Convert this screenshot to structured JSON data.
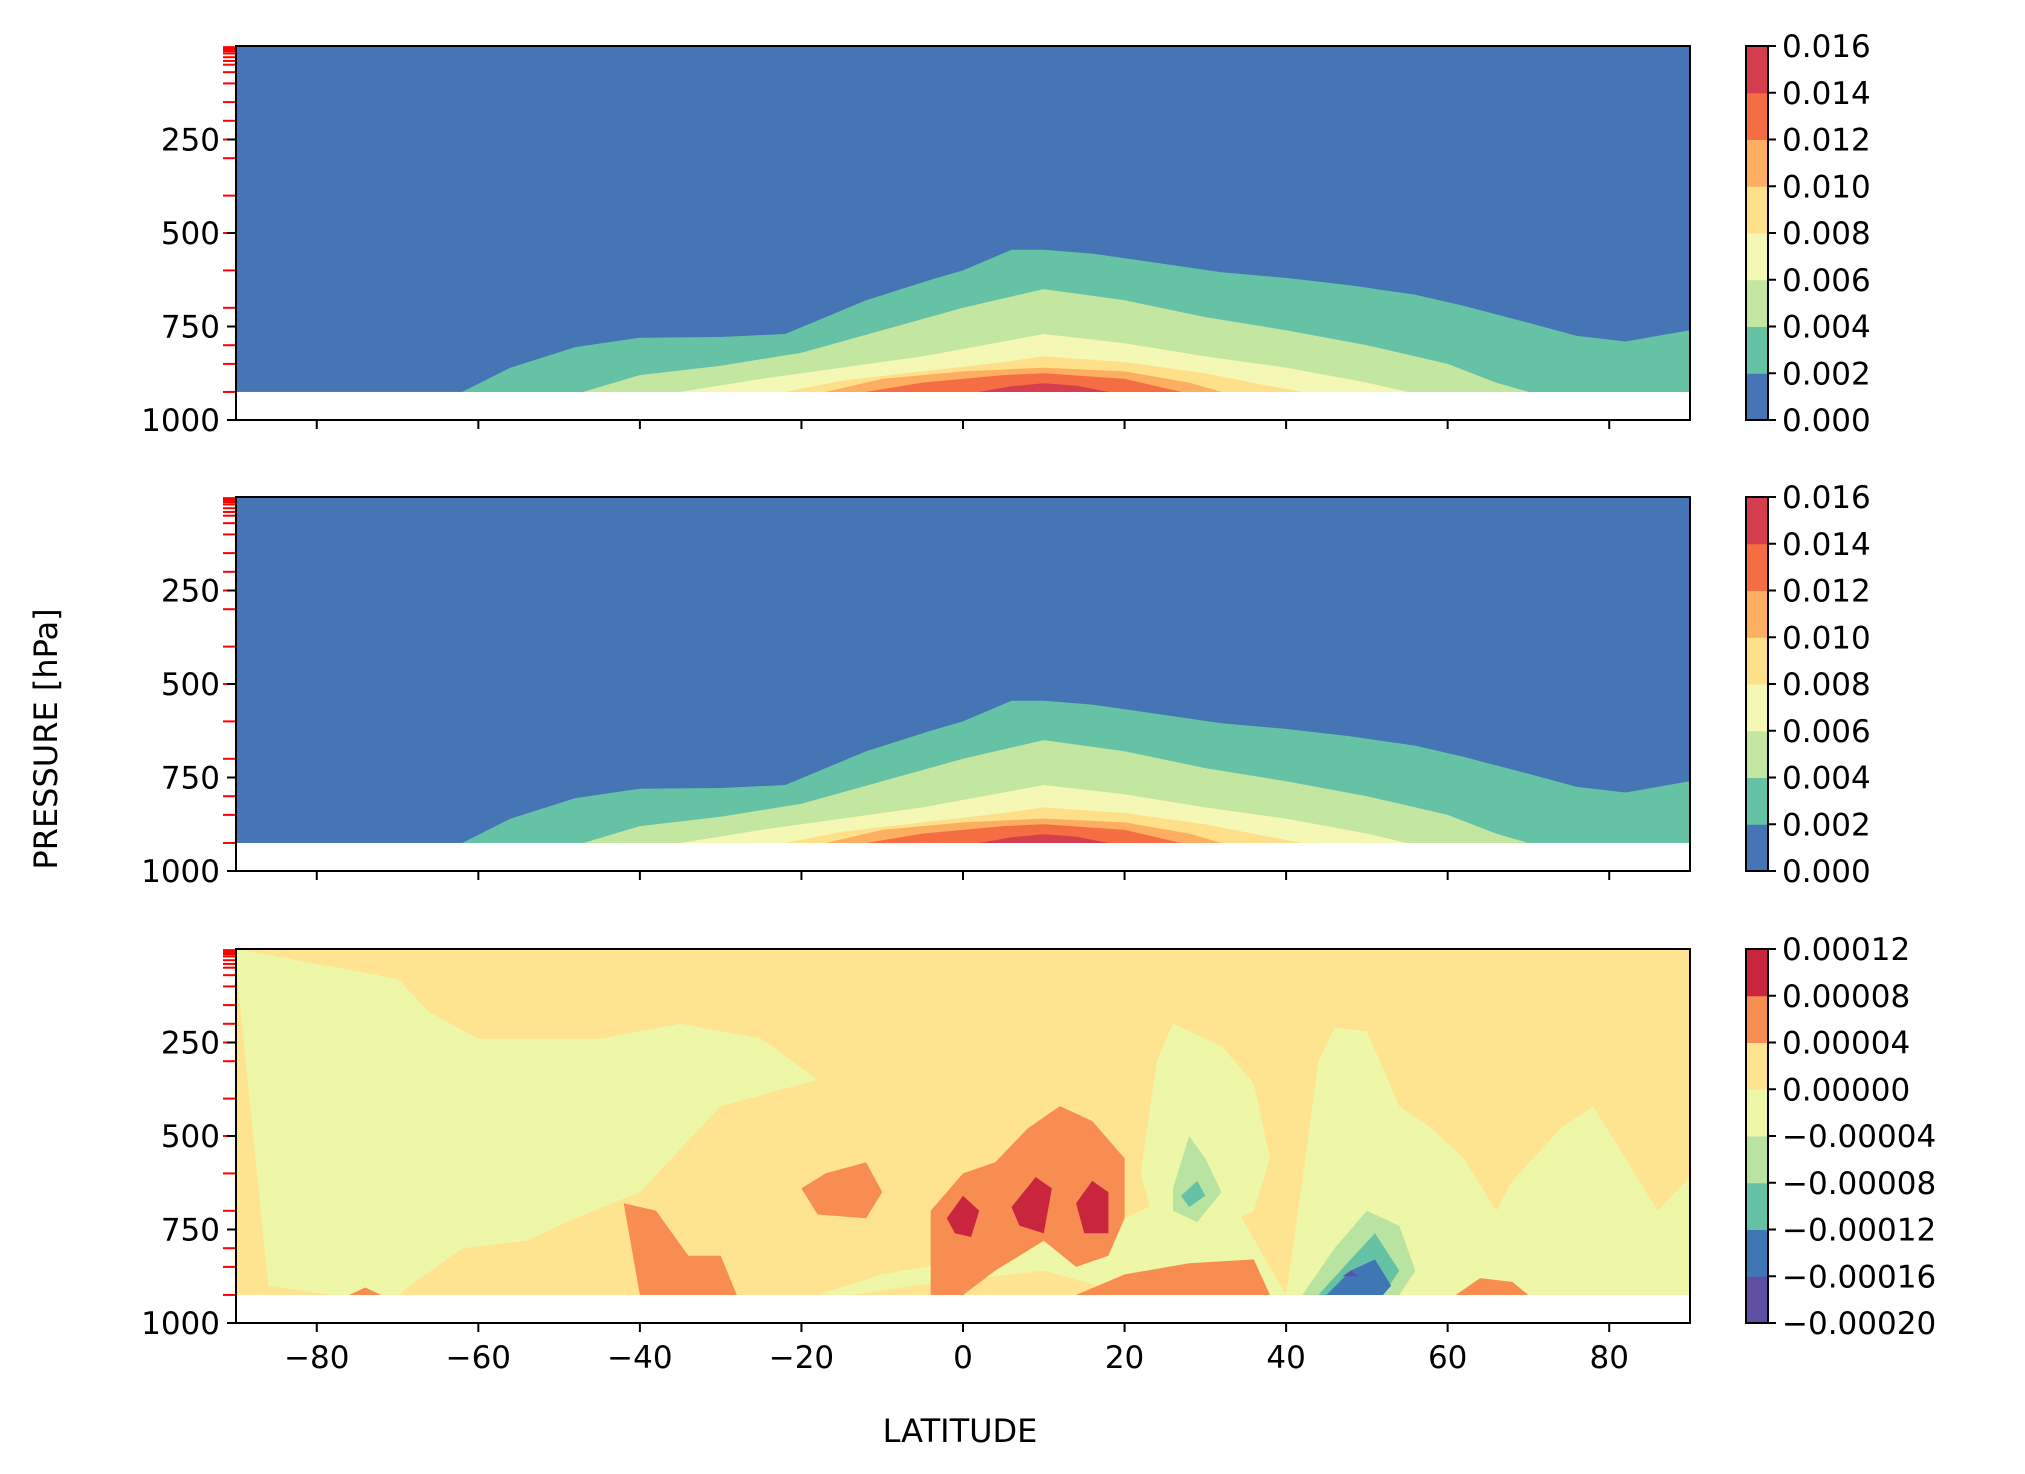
{
  "figure": {
    "xlabel": "LATITUDE",
    "ylabel": "PRESSURE [hPa]"
  },
  "chart_data": [
    {
      "type": "contourf",
      "panel": "top",
      "xlim": [
        -90,
        90
      ],
      "ylim": [
        1000,
        0
      ],
      "x_ticks": [
        -80,
        -60,
        -40,
        -20,
        0,
        20,
        40,
        60,
        80
      ],
      "y_ticks": [
        250,
        500,
        750,
        1000
      ],
      "y_tick_labels": [
        "250",
        "500",
        "750",
        "1000"
      ],
      "x_tick_labels_visible": false,
      "surface_level_hpa": 925,
      "colormap": "Spectral_r",
      "levels": [
        0.0,
        0.002,
        0.004,
        0.006,
        0.008,
        0.01,
        0.012,
        0.014,
        0.016
      ],
      "colorbar_ticks": [
        "0.000",
        "0.002",
        "0.004",
        "0.006",
        "0.008",
        "0.010",
        "0.012",
        "0.014",
        "0.016"
      ],
      "colors": [
        "#4575b4",
        "#66c2a5",
        "#c3e6a0",
        "#f5f7b4",
        "#fee08b",
        "#fdae61",
        "#f46d43",
        "#d53e4f",
        "#9e0142"
      ],
      "contours": [
        {
          "level": 0.002,
          "lat": [
            -62,
            -56,
            -48,
            -40,
            -30,
            -22,
            -12,
            -4,
            0,
            6,
            10,
            16,
            24,
            32,
            40,
            48,
            56,
            62,
            70,
            76,
            82,
            90
          ],
          "p": [
            925,
            860,
            805,
            780,
            778,
            770,
            680,
            625,
            600,
            545,
            545,
            555,
            580,
            605,
            620,
            640,
            665,
            695,
            740,
            775,
            790,
            760
          ]
        },
        {
          "level": 0.004,
          "lat": [
            -47,
            -40,
            -30,
            -20,
            -10,
            0,
            10,
            20,
            30,
            40,
            50,
            60,
            66,
            70
          ],
          "p": [
            925,
            880,
            855,
            820,
            760,
            700,
            650,
            680,
            725,
            760,
            800,
            850,
            900,
            925
          ]
        },
        {
          "level": 0.006,
          "lat": [
            -35,
            -25,
            -15,
            -5,
            5,
            10,
            20,
            30,
            40,
            50,
            55
          ],
          "p": [
            925,
            890,
            860,
            830,
            790,
            770,
            795,
            830,
            860,
            900,
            925
          ]
        },
        {
          "level": 0.008,
          "lat": [
            -22,
            -15,
            -5,
            5,
            10,
            20,
            30,
            37,
            42
          ],
          "p": [
            925,
            895,
            870,
            845,
            830,
            845,
            875,
            905,
            925
          ]
        },
        {
          "level": 0.01,
          "lat": [
            -17,
            -10,
            0,
            10,
            20,
            28,
            32
          ],
          "p": [
            925,
            890,
            870,
            860,
            870,
            900,
            925
          ]
        },
        {
          "level": 0.012,
          "lat": [
            -12,
            -5,
            5,
            10,
            20,
            27
          ],
          "p": [
            925,
            900,
            880,
            875,
            890,
            925
          ]
        },
        {
          "level": 0.014,
          "lat": [
            2,
            6,
            10,
            14,
            18
          ],
          "p": [
            925,
            910,
            902,
            908,
            925
          ]
        }
      ]
    },
    {
      "type": "contourf",
      "panel": "middle",
      "xlim": [
        -90,
        90
      ],
      "ylim": [
        1000,
        0
      ],
      "x_ticks": [
        -80,
        -60,
        -40,
        -20,
        0,
        20,
        40,
        60,
        80
      ],
      "y_ticks": [
        250,
        500,
        750,
        1000
      ],
      "y_tick_labels": [
        "250",
        "500",
        "750",
        "1000"
      ],
      "x_tick_labels_visible": false,
      "surface_level_hpa": 925,
      "colormap": "Spectral_r",
      "levels": [
        0.0,
        0.002,
        0.004,
        0.006,
        0.008,
        0.01,
        0.012,
        0.014,
        0.016
      ],
      "colorbar_ticks": [
        "0.000",
        "0.002",
        "0.004",
        "0.006",
        "0.008",
        "0.010",
        "0.012",
        "0.014",
        "0.016"
      ],
      "colors": [
        "#4575b4",
        "#66c2a5",
        "#c3e6a0",
        "#f5f7b4",
        "#fee08b",
        "#fdae61",
        "#f46d43",
        "#d53e4f",
        "#9e0142"
      ],
      "contours": [
        {
          "level": 0.002,
          "lat": [
            -62,
            -56,
            -48,
            -40,
            -30,
            -22,
            -12,
            -4,
            0,
            6,
            10,
            16,
            24,
            32,
            40,
            48,
            56,
            62,
            70,
            76,
            82,
            90
          ],
          "p": [
            925,
            860,
            805,
            780,
            778,
            770,
            680,
            625,
            600,
            545,
            545,
            555,
            580,
            605,
            620,
            640,
            665,
            695,
            740,
            775,
            790,
            760
          ]
        },
        {
          "level": 0.004,
          "lat": [
            -47,
            -40,
            -30,
            -20,
            -10,
            0,
            10,
            20,
            30,
            40,
            50,
            60,
            66,
            70
          ],
          "p": [
            925,
            880,
            855,
            820,
            760,
            700,
            650,
            680,
            725,
            760,
            800,
            850,
            900,
            925
          ]
        },
        {
          "level": 0.006,
          "lat": [
            -35,
            -25,
            -15,
            -5,
            5,
            10,
            20,
            30,
            40,
            50,
            55
          ],
          "p": [
            925,
            890,
            860,
            830,
            790,
            770,
            795,
            830,
            860,
            900,
            925
          ]
        },
        {
          "level": 0.008,
          "lat": [
            -22,
            -15,
            -5,
            5,
            10,
            20,
            30,
            37,
            42
          ],
          "p": [
            925,
            895,
            870,
            845,
            830,
            845,
            875,
            905,
            925
          ]
        },
        {
          "level": 0.01,
          "lat": [
            -17,
            -10,
            0,
            10,
            20,
            28,
            32
          ],
          "p": [
            925,
            890,
            870,
            860,
            870,
            900,
            925
          ]
        },
        {
          "level": 0.012,
          "lat": [
            -12,
            -5,
            5,
            10,
            20,
            27
          ],
          "p": [
            925,
            900,
            880,
            875,
            890,
            925
          ]
        },
        {
          "level": 0.014,
          "lat": [
            2,
            6,
            10,
            14,
            18
          ],
          "p": [
            925,
            910,
            902,
            908,
            925
          ]
        }
      ]
    },
    {
      "type": "contourf",
      "panel": "bottom",
      "xlim": [
        -90,
        90
      ],
      "ylim": [
        1000,
        0
      ],
      "x_ticks": [
        -80,
        -60,
        -40,
        -20,
        0,
        20,
        40,
        60,
        80
      ],
      "x_tick_labels": [
        "−80",
        "−60",
        "−40",
        "−20",
        "0",
        "20",
        "40",
        "60",
        "80"
      ],
      "y_ticks": [
        250,
        500,
        750,
        1000
      ],
      "y_tick_labels": [
        "250",
        "500",
        "750",
        "1000"
      ],
      "x_tick_labels_visible": true,
      "surface_level_hpa": 925,
      "colormap": "Spectral_r",
      "levels": [
        -0.0002,
        -0.00016,
        -0.00012,
        -8e-05,
        -4e-05,
        0.0,
        4e-05,
        8e-05,
        0.00012
      ],
      "colorbar_ticks": [
        "−0.00020",
        "−0.00016",
        "−0.00012",
        "−0.00008",
        "−0.00004",
        "0.00000",
        "0.00004",
        "0.00008",
        "0.00012"
      ],
      "colors": [
        "#5e4fa2",
        "#3e76b6",
        "#66c2a5",
        "#b8e3a0",
        "#eef7a8",
        "#fee391",
        "#f88d52",
        "#c9253f"
      ],
      "background_color": "#fee391",
      "regions": [
        {
          "fill": "#eef7a8",
          "lat": [
            -90,
            -80,
            -70,
            -66,
            -60,
            -45,
            -35,
            -25,
            -18,
            -30,
            -40,
            -48,
            -54,
            -62,
            -70,
            -78,
            -86,
            -90
          ],
          "p": [
            0,
            40,
            80,
            170,
            240,
            240,
            200,
            240,
            350,
            420,
            650,
            720,
            780,
            800,
            925,
            925,
            900,
            40
          ]
        },
        {
          "fill": "#eef7a8",
          "lat": [
            -18,
            -10,
            -2,
            4,
            12,
            20,
            24,
            28,
            34,
            40,
            36,
            28,
            20,
            10,
            2,
            -6,
            -14
          ],
          "p": [
            925,
            870,
            840,
            780,
            720,
            720,
            680,
            640,
            700,
            925,
            925,
            880,
            920,
            860,
            880,
            900,
            925
          ]
        },
        {
          "fill": "#eef7a8",
          "lat": [
            22,
            24,
            26,
            32,
            36,
            38,
            36,
            30,
            24
          ],
          "p": [
            600,
            300,
            200,
            260,
            360,
            560,
            700,
            760,
            760
          ]
        },
        {
          "fill": "#eef7a8",
          "lat": [
            40,
            42,
            44,
            46,
            50,
            54,
            58,
            62,
            66,
            68,
            74,
            78,
            82,
            86,
            90,
            90,
            60,
            50,
            44
          ],
          "p": [
            925,
            620,
            300,
            210,
            220,
            420,
            480,
            560,
            700,
            620,
            480,
            420,
            560,
            700,
            610,
            925,
            925,
            925,
            925
          ]
        },
        {
          "fill": "#f88d52",
          "lat": [
            -42,
            -38,
            -34,
            -30,
            -28,
            -32,
            -40
          ],
          "p": [
            680,
            700,
            820,
            820,
            925,
            925,
            925
          ]
        },
        {
          "fill": "#f88d52",
          "lat": [
            -76,
            -74,
            -72,
            -75
          ],
          "p": [
            925,
            905,
            925,
            925
          ]
        },
        {
          "fill": "#f88d52",
          "lat": [
            -20,
            -17,
            -12,
            -10,
            -12,
            -18
          ],
          "p": [
            640,
            600,
            570,
            650,
            720,
            710
          ]
        },
        {
          "fill": "#f88d52",
          "lat": [
            -4,
            0,
            4,
            8,
            12,
            16,
            20,
            20,
            18,
            14,
            10,
            4,
            0,
            -4
          ],
          "p": [
            700,
            600,
            570,
            480,
            420,
            460,
            560,
            720,
            820,
            850,
            780,
            860,
            925,
            925
          ]
        },
        {
          "fill": "#f88d52",
          "lat": [
            14,
            20,
            28,
            36,
            38,
            34,
            28,
            20,
            14
          ],
          "p": [
            925,
            870,
            840,
            830,
            925,
            925,
            925,
            925,
            925
          ]
        },
        {
          "fill": "#f88d52",
          "lat": [
            61,
            64,
            68,
            70,
            63
          ],
          "p": [
            925,
            880,
            890,
            925,
            925
          ]
        },
        {
          "fill": "#c9253f",
          "lat": [
            -2,
            0,
            2,
            1,
            -1
          ],
          "p": [
            720,
            660,
            700,
            770,
            760
          ]
        },
        {
          "fill": "#c9253f",
          "lat": [
            6,
            9,
            11,
            10,
            7
          ],
          "p": [
            690,
            610,
            640,
            760,
            740
          ]
        },
        {
          "fill": "#c9253f",
          "lat": [
            14,
            16,
            18,
            18,
            15
          ],
          "p": [
            680,
            620,
            650,
            760,
            760
          ]
        },
        {
          "fill": "#b8e3a0",
          "lat": [
            26,
            28,
            30,
            32,
            29,
            26
          ],
          "p": [
            640,
            500,
            560,
            650,
            730,
            700
          ]
        },
        {
          "fill": "#66c2a5",
          "lat": [
            27,
            29,
            30,
            28
          ],
          "p": [
            660,
            620,
            660,
            690
          ]
        },
        {
          "fill": "#b8e3a0",
          "lat": [
            42,
            46,
            50,
            54,
            56,
            54,
            44
          ],
          "p": [
            925,
            800,
            700,
            740,
            860,
            925,
            925
          ]
        },
        {
          "fill": "#66c2a5",
          "lat": [
            44,
            48,
            51,
            54,
            52,
            45
          ],
          "p": [
            925,
            830,
            760,
            860,
            925,
            925
          ]
        },
        {
          "fill": "#3e76b6",
          "lat": [
            45,
            48,
            51,
            53,
            52,
            46
          ],
          "p": [
            925,
            860,
            830,
            900,
            925,
            925
          ]
        },
        {
          "fill": "#5e4fa2",
          "lat": [
            47,
            48,
            49
          ],
          "p": [
            875,
            860,
            875
          ]
        },
        {
          "fill": "#eef7a8",
          "lat": [
            88,
            90,
            90,
            89
          ],
          "p": [
            720,
            700,
            820,
            800
          ]
        }
      ]
    }
  ]
}
